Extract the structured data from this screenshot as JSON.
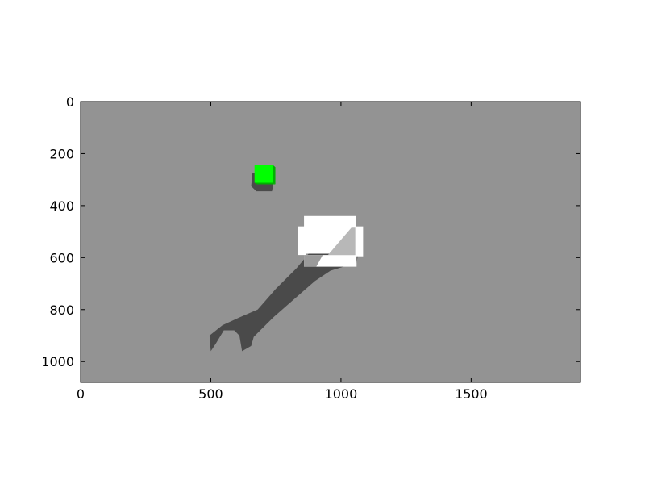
{
  "chart_data": {
    "type": "image",
    "title": "",
    "xlabel": "",
    "ylabel": "",
    "xlim": [
      0,
      1920
    ],
    "ylim": [
      1080,
      0
    ],
    "y_axis_inverted": true,
    "xticks": [
      0,
      500,
      1000,
      1500
    ],
    "yticks": [
      0,
      200,
      400,
      600,
      800,
      1000
    ],
    "grid": false,
    "colors": {
      "background": "#939393",
      "shadow": "#4a4a4a",
      "green_block": "#00ff00",
      "green_block_side": "#00b000",
      "white_object": "#ffffff",
      "frame": "#000000"
    },
    "scene_objects": [
      {
        "name": "green-cube",
        "x_range": [
          668,
          745
        ],
        "y_range": [
          245,
          312
        ]
      },
      {
        "name": "white-object",
        "x_range": [
          835,
          1090
        ],
        "y_range": [
          440,
          635
        ]
      },
      {
        "name": "robot-arm-shadow",
        "x_range": [
          495,
          1060
        ],
        "y_range": [
          560,
          965
        ]
      }
    ]
  }
}
